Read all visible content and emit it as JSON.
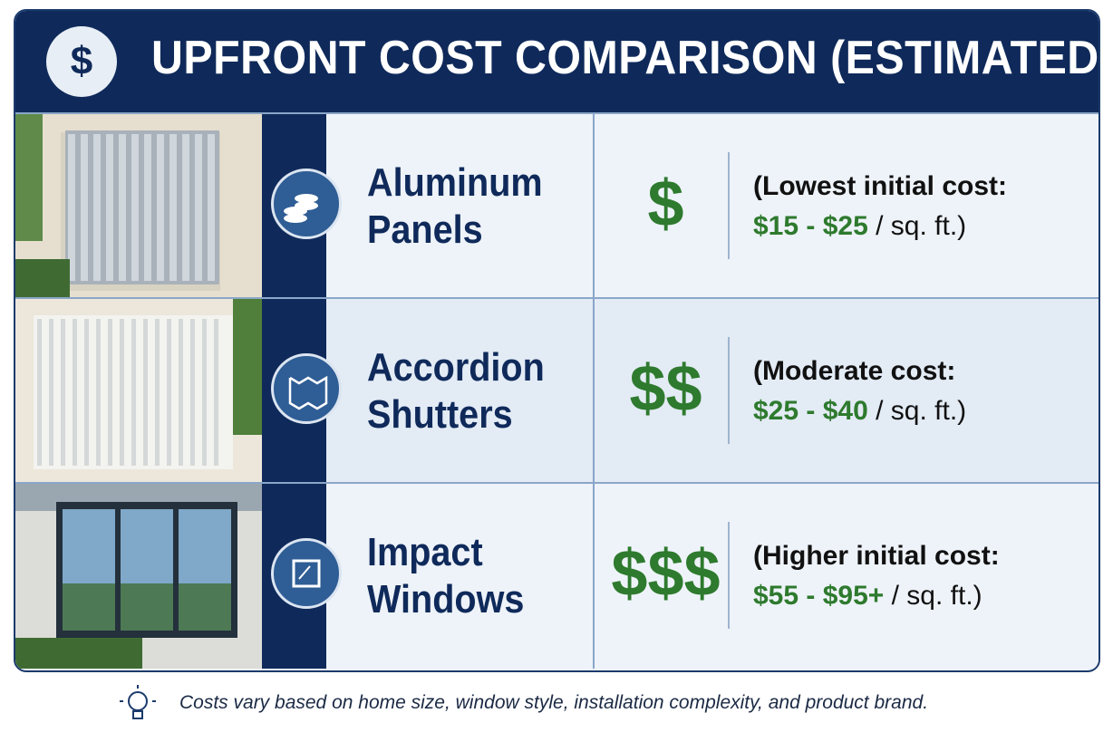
{
  "header": {
    "icon": "$",
    "title": "UPFRONT COST COMPARISON (ESTIMATED)"
  },
  "rows": [
    {
      "name": "Aluminum Panels",
      "symbol": "$",
      "note": "(Lowest initial cost:",
      "range": "$15 - $25",
      "unit": "/ sq. ft.)"
    },
    {
      "name": "Accordion Shutters",
      "symbol": "$$",
      "note": "(Moderate cost:",
      "range": "$25 - $40",
      "unit": "/ sq. ft.)"
    },
    {
      "name": "Impact Windows",
      "symbol": "$$$",
      "note": "(Higher initial cost:",
      "range": "$55 - $95+",
      "unit": "/ sq. ft.)"
    }
  ],
  "footer": {
    "note": "Costs vary based on home size, window style, installation complexity, and product brand."
  }
}
